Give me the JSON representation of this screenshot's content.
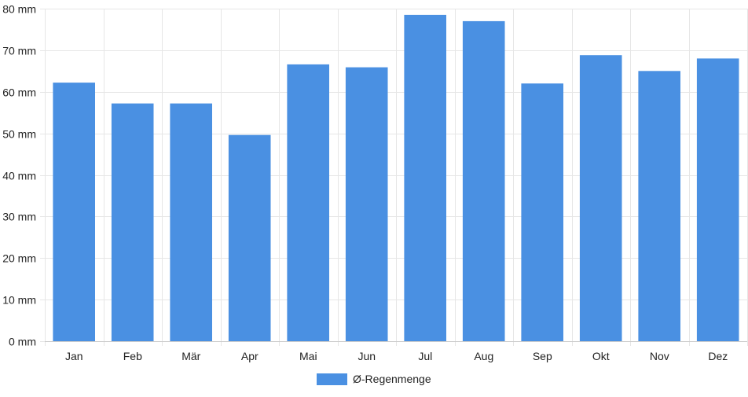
{
  "chart_data": {
    "type": "bar",
    "categories": [
      "Jan",
      "Feb",
      "Mär",
      "Apr",
      "Mai",
      "Jun",
      "Jul",
      "Aug",
      "Sep",
      "Okt",
      "Nov",
      "Dez"
    ],
    "series": [
      {
        "name": "Ø-Regenmenge",
        "color": "#4a90e2",
        "values": [
          62.2,
          57.2,
          57.2,
          49.6,
          66.6,
          65.9,
          78.5,
          77.0,
          62.0,
          68.8,
          65.0,
          68.0
        ]
      }
    ],
    "ylim": [
      0,
      80
    ],
    "yticks": [
      0,
      10,
      20,
      30,
      40,
      50,
      60,
      70,
      80
    ],
    "y_unit": "mm",
    "grid": true,
    "legend_position": "bottom"
  }
}
